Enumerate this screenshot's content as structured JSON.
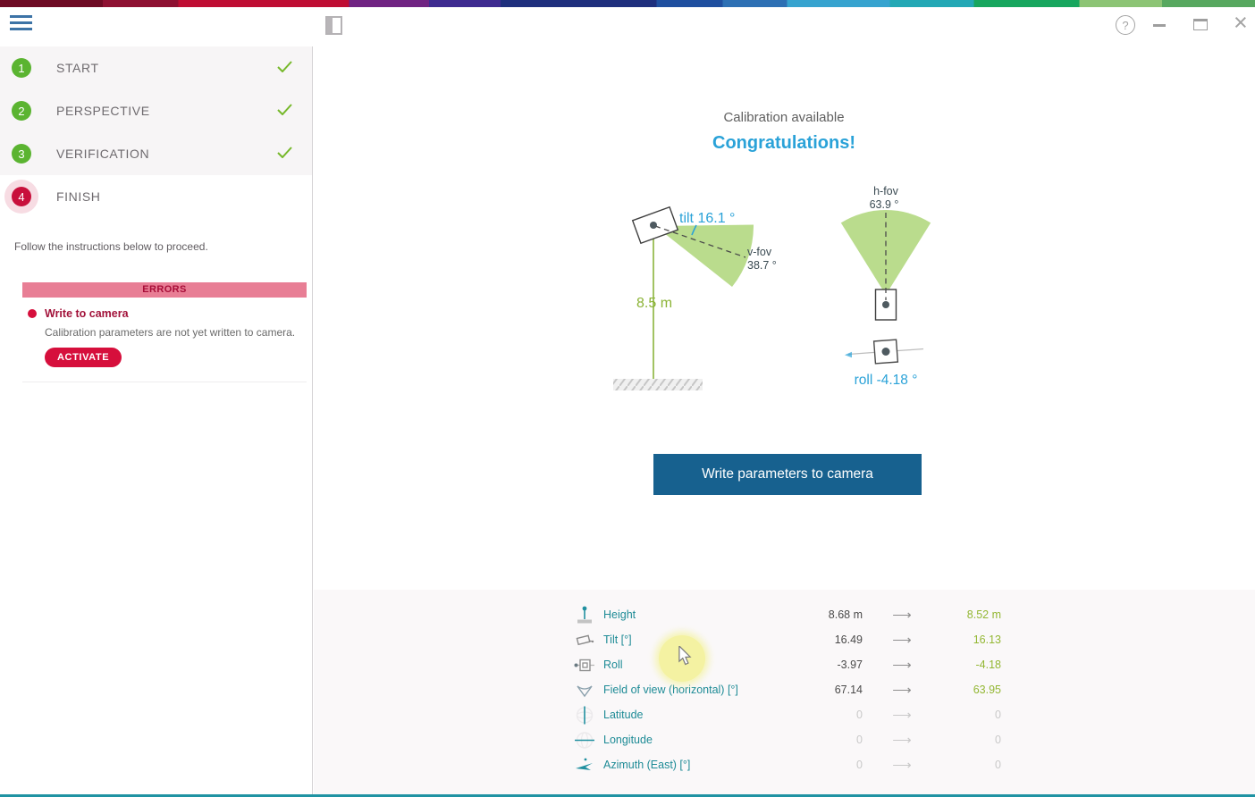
{
  "window": {
    "help_glyph": "?",
    "close_glyph": "×"
  },
  "steps": [
    {
      "num": "1",
      "label": "START",
      "done": true
    },
    {
      "num": "2",
      "label": "PERSPECTIVE",
      "done": true
    },
    {
      "num": "3",
      "label": "VERIFICATION",
      "done": true
    },
    {
      "num": "4",
      "label": "FINISH",
      "done": false,
      "active": true
    }
  ],
  "sidebar": {
    "instruction": "Follow the instructions below to proceed.",
    "errors": {
      "header": "ERRORS",
      "title": "Write to camera",
      "description": "Calibration parameters are not yet written to camera.",
      "action_label": "ACTIVATE"
    }
  },
  "main": {
    "status": "Calibration available",
    "headline": "Congratulations!",
    "write_button": "Write parameters to camera"
  },
  "diagram": {
    "tilt_label": "tilt 16.1 °",
    "vfov_label_line1": "v-fov",
    "vfov_label_line2": "38.7 °",
    "height_label": "8.5 m",
    "hfov_label_line1": "h-fov",
    "hfov_label_line2": "63.9 °",
    "roll_label": "roll -4.18 °"
  },
  "table": {
    "arrow": "⟶",
    "rows": [
      {
        "icon": "height-icon",
        "label": "Height",
        "old": "8.68 m",
        "new": "8.52 m",
        "disabled": false
      },
      {
        "icon": "tilt-icon",
        "label": "Tilt [°]",
        "old": "16.49",
        "new": "16.13",
        "disabled": false
      },
      {
        "icon": "roll-icon",
        "label": "Roll",
        "old": "-3.97",
        "new": "-4.18",
        "disabled": false
      },
      {
        "icon": "fov-icon",
        "label": "Field of view (horizontal) [°]",
        "old": "67.14",
        "new": "63.95",
        "disabled": false
      },
      {
        "icon": "latitude-icon",
        "label": "Latitude",
        "old": "0",
        "new": "0",
        "disabled": true
      },
      {
        "icon": "longitude-icon",
        "label": "Longitude",
        "old": "0",
        "new": "0",
        "disabled": true
      },
      {
        "icon": "azimuth-icon",
        "label": "Azimuth (East) [°]",
        "old": "0",
        "new": "0",
        "disabled": true
      }
    ]
  },
  "colors": {
    "accent_blue": "#2aa2d8",
    "button_blue": "#17618f",
    "error_red": "#d60f3c",
    "error_dark_red": "#a2123a",
    "errors_bar_pink": "#e87e95",
    "step_green": "#5bb431",
    "check_green": "#76b82a",
    "new_value_green": "#93b733",
    "label_teal": "#1e8b96",
    "bottom_line_teal": "#1f93a3",
    "fan_green": "#badc8d",
    "height_line_green": "#8bb43c"
  }
}
